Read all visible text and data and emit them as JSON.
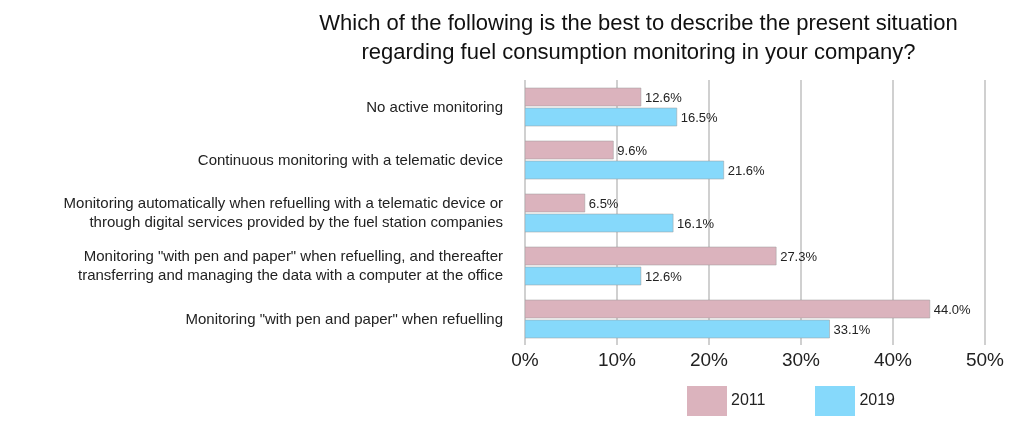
{
  "chart_data": {
    "type": "bar",
    "orientation": "horizontal",
    "title": "Which of the following is the best to describe the present situation\nregarding fuel consumption monitoring in your company?",
    "categories": [
      "No active monitoring",
      "Continuous monitoring with a telematic device",
      "Monitoring automatically when refuelling with a telematic device or\nthrough digital services provided by the fuel station companies",
      "Monitoring \"with pen and paper\" when refuelling, and thereafter\ntransferring and managing the data with a computer at the office",
      "Monitoring \"with pen and paper\" when refuelling"
    ],
    "series": [
      {
        "name": "2011",
        "color": "#dbb3bd",
        "values": [
          12.6,
          9.6,
          6.5,
          27.3,
          44.0
        ],
        "value_labels": [
          "12.6%",
          "9.6%",
          "6.5%",
          "27.3%",
          "44.0%"
        ]
      },
      {
        "name": "2019",
        "color": "#86d9fb",
        "values": [
          16.5,
          21.6,
          16.1,
          12.6,
          33.1
        ],
        "value_labels": [
          "16.5%",
          "21.6%",
          "16.1%",
          "12.6%",
          "33.1%"
        ]
      }
    ],
    "xlim": [
      0,
      50
    ],
    "xticks": [
      {
        "value": 0,
        "label": "0%"
      },
      {
        "value": 10,
        "label": "10%"
      },
      {
        "value": 20,
        "label": "20%"
      },
      {
        "value": 30,
        "label": "30%"
      },
      {
        "value": 40,
        "label": "40%"
      },
      {
        "value": 50,
        "label": "50%"
      }
    ],
    "grid": "x",
    "legend": "bottom right"
  }
}
